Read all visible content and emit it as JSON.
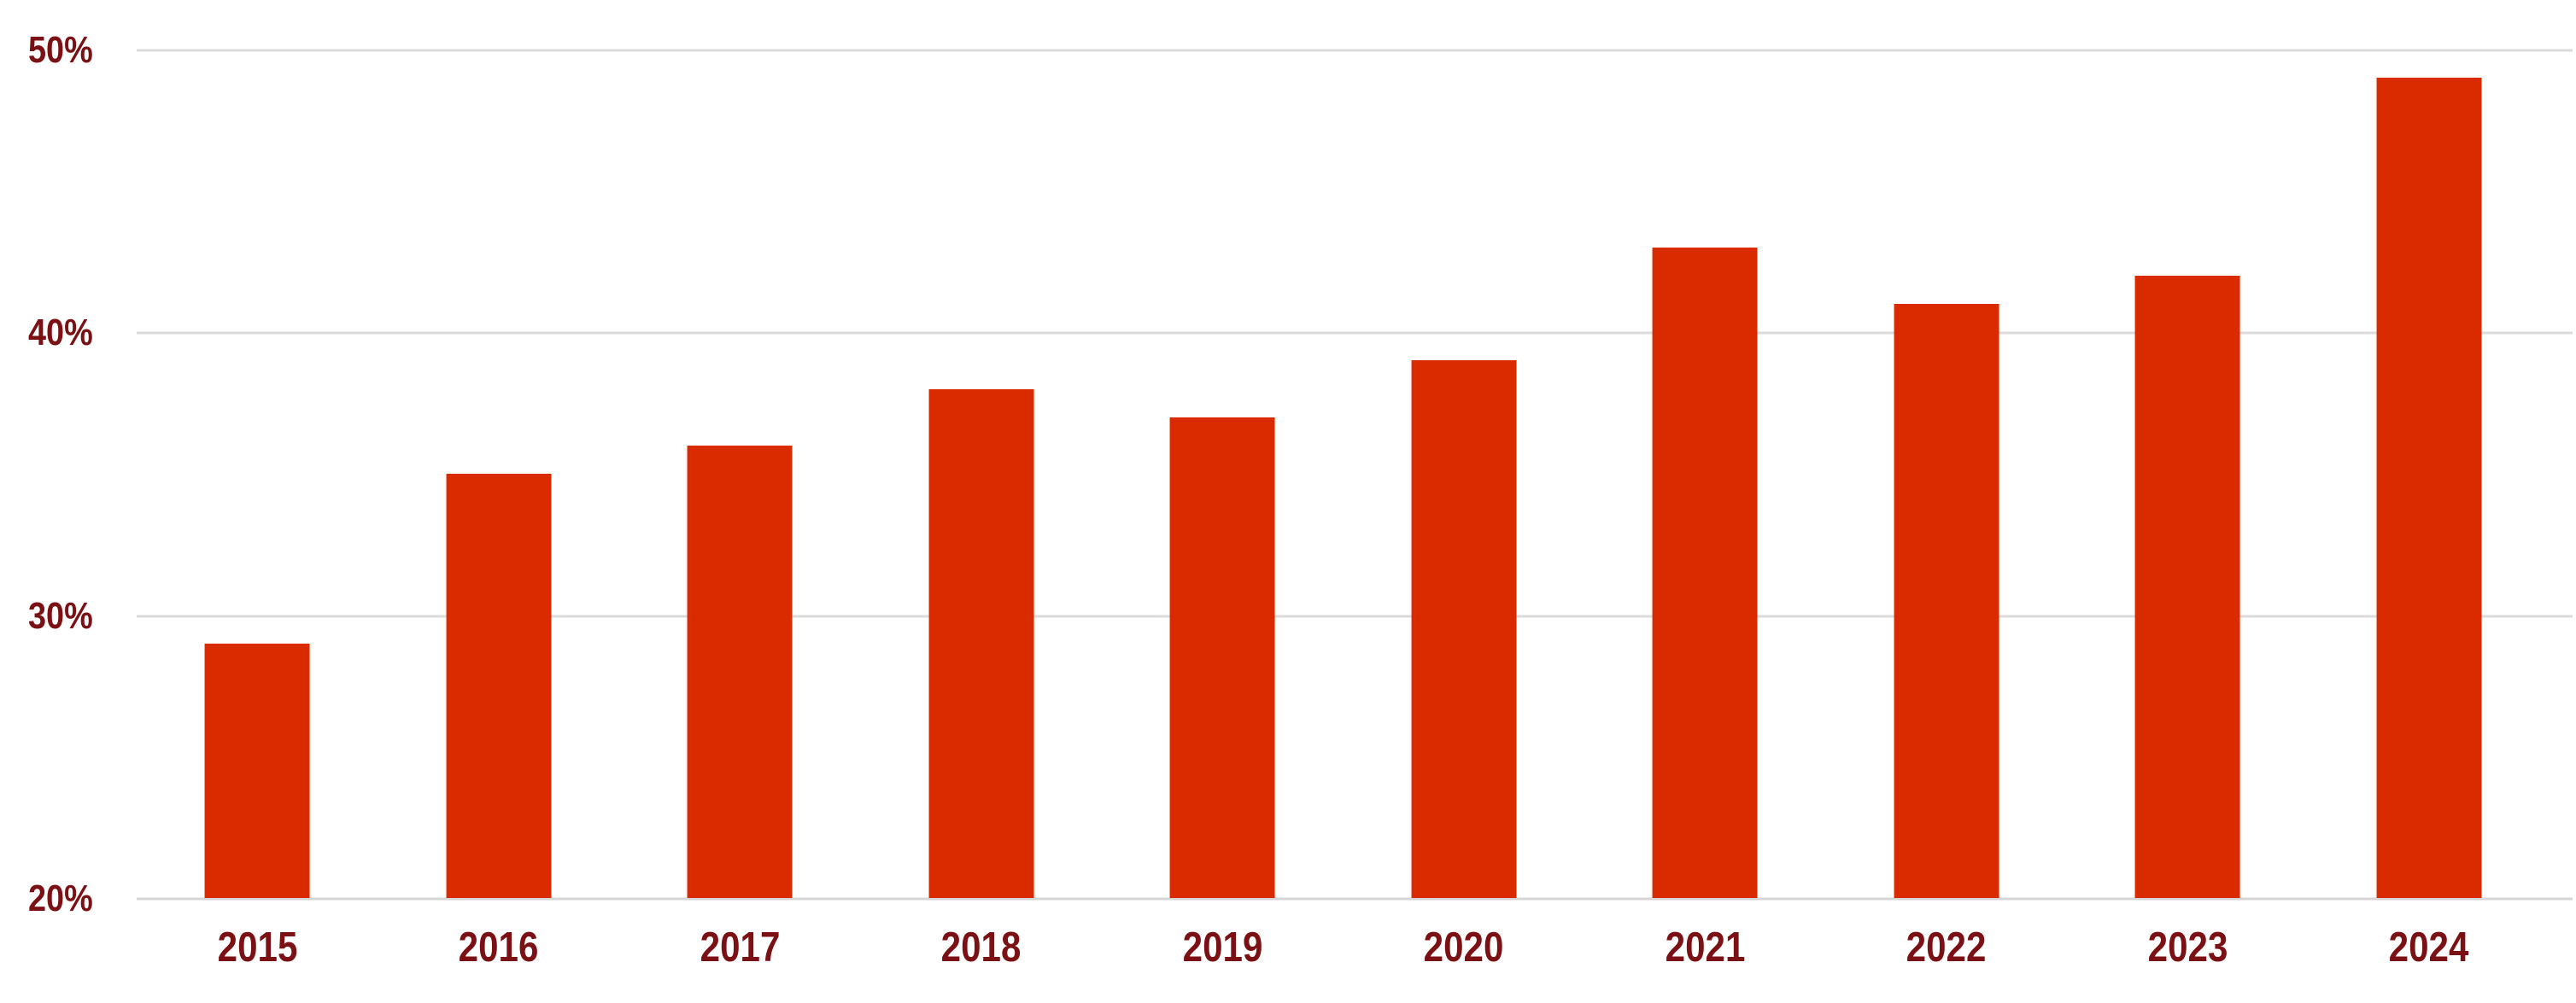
{
  "chart_data": {
    "type": "bar",
    "title": "",
    "xlabel": "",
    "ylabel": "",
    "categories": [
      "2015",
      "2016",
      "2017",
      "2018",
      "2019",
      "2020",
      "2021",
      "2022",
      "2023",
      "2024"
    ],
    "values": [
      29,
      35,
      36,
      38,
      37,
      39,
      43,
      41,
      42,
      49
    ],
    "value_unit": "%",
    "ylim": [
      20,
      50
    ],
    "yticks": [
      50,
      40,
      30,
      20
    ],
    "ytick_labels": [
      "50%",
      "40%",
      "30%",
      "20%"
    ],
    "grid": true,
    "legend": false,
    "colors": {
      "bar": "#DA2B00",
      "tick_label": "#7B1114",
      "gridline": "#DBDBDB",
      "baseline": "#D6D6D6",
      "background": "#FFFFFF"
    }
  }
}
